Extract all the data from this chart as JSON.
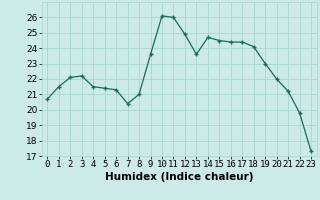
{
  "x": [
    0,
    1,
    2,
    3,
    4,
    5,
    6,
    7,
    8,
    9,
    10,
    11,
    12,
    13,
    14,
    15,
    16,
    17,
    18,
    19,
    20,
    21,
    22,
    23
  ],
  "y": [
    20.7,
    21.5,
    22.1,
    22.2,
    21.5,
    21.4,
    21.3,
    20.4,
    21.0,
    23.6,
    26.1,
    26.0,
    24.9,
    23.6,
    24.7,
    24.5,
    24.4,
    24.4,
    24.1,
    23.0,
    22.0,
    21.2,
    19.8,
    17.3
  ],
  "xlabel": "Humidex (Indice chaleur)",
  "xlim": [
    -0.5,
    23.5
  ],
  "ylim": [
    17,
    27
  ],
  "yticks": [
    17,
    18,
    19,
    20,
    21,
    22,
    23,
    24,
    25,
    26
  ],
  "xticks": [
    0,
    1,
    2,
    3,
    4,
    5,
    6,
    7,
    8,
    9,
    10,
    11,
    12,
    13,
    14,
    15,
    16,
    17,
    18,
    19,
    20,
    21,
    22,
    23
  ],
  "line_color": "#1a6b5a",
  "marker": "+",
  "bg_color": "#cceae8",
  "grid_color": "#aad4d0",
  "tick_fontsize": 6.5,
  "xlabel_fontsize": 7.5
}
